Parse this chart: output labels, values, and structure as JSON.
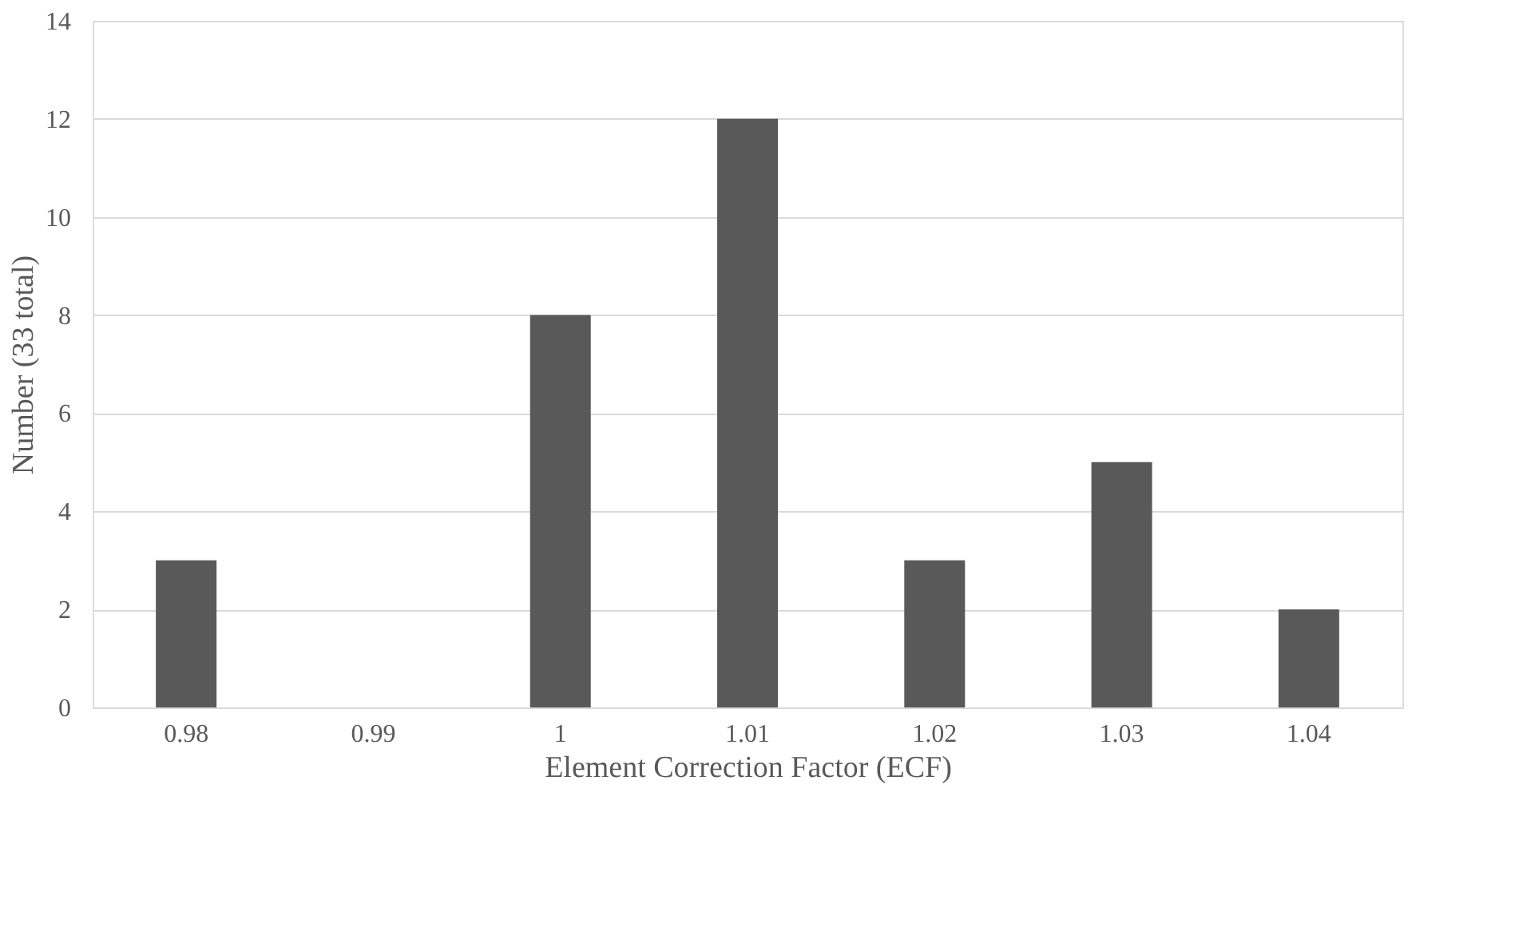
{
  "chart_data": {
    "type": "bar",
    "xlabel": "Element Correction Factor (ECF)",
    "ylabel": "Number (33 total)",
    "categories": [
      "0.98",
      "0.99",
      "1",
      "1.01",
      "1.02",
      "1.03",
      "1.04"
    ],
    "values": [
      3,
      0,
      8,
      12,
      3,
      5,
      2
    ],
    "color": "#595959",
    "ylim": [
      0,
      14
    ],
    "yticks": [
      0,
      2,
      4,
      6,
      8,
      10,
      12,
      14
    ],
    "grid": "y"
  }
}
